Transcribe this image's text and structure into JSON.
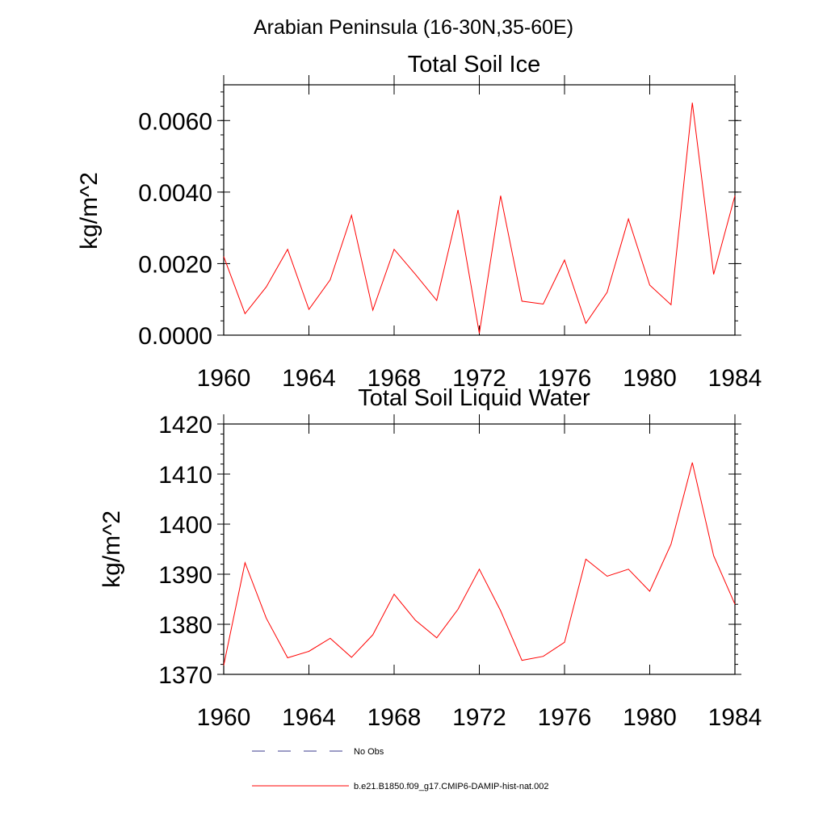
{
  "figure": {
    "title": "Arabian Peninsula (16-30N,35-60E)"
  },
  "chart_data": [
    {
      "type": "line",
      "title": "Total Soil Ice",
      "ylabel": "kg/m^2",
      "xlabel": "",
      "x": [
        1960,
        1961,
        1962,
        1963,
        1964,
        1965,
        1966,
        1967,
        1968,
        1969,
        1970,
        1971,
        1972,
        1973,
        1974,
        1975,
        1976,
        1977,
        1978,
        1979,
        1980,
        1981,
        1982,
        1983,
        1984
      ],
      "xlim": [
        1960,
        1984
      ],
      "ylim": [
        0,
        0.007
      ],
      "x_ticks": [
        1960,
        1964,
        1968,
        1972,
        1976,
        1980,
        1984
      ],
      "x_tick_labels": [
        "1960",
        "1964",
        "1968",
        "1972",
        "1976",
        "1980",
        "1984"
      ],
      "y_ticks": [
        0,
        0.002,
        0.004,
        0.006
      ],
      "y_tick_labels": [
        "0.0000",
        "0.0020",
        "0.0040",
        "0.0060"
      ],
      "series": [
        {
          "name": "b.e21.B1850.f09_g17.CMIP6-DAMIP-hist-nat.002",
          "color": "#ff0000",
          "values": [
            0.0022,
            0.0006,
            0.00135,
            0.0024,
            0.00072,
            0.00155,
            0.00335,
            0.0007,
            0.0024,
            0.0017,
            0.00097,
            0.0035,
            5e-05,
            0.0039,
            0.00095,
            0.00087,
            0.0021,
            0.00033,
            0.0012,
            0.00325,
            0.0014,
            0.00085,
            0.0065,
            0.0017,
            0.0039
          ]
        }
      ],
      "grid": false
    },
    {
      "type": "line",
      "title": "Total Soil Liquid Water",
      "ylabel": "kg/m^2",
      "xlabel": "",
      "x": [
        1960,
        1961,
        1962,
        1963,
        1964,
        1965,
        1966,
        1967,
        1968,
        1969,
        1970,
        1971,
        1972,
        1973,
        1974,
        1975,
        1976,
        1977,
        1978,
        1979,
        1980,
        1981,
        1982,
        1983,
        1984
      ],
      "xlim": [
        1960,
        1984
      ],
      "ylim": [
        1370,
        1420
      ],
      "x_ticks": [
        1960,
        1964,
        1968,
        1972,
        1976,
        1980,
        1984
      ],
      "x_tick_labels": [
        "1960",
        "1964",
        "1968",
        "1972",
        "1976",
        "1980",
        "1984"
      ],
      "y_ticks": [
        1370,
        1380,
        1390,
        1400,
        1410,
        1420
      ],
      "y_tick_labels": [
        "1370",
        "1380",
        "1390",
        "1400",
        "1410",
        "1420"
      ],
      "series": [
        {
          "name": "b.e21.B1850.f09_g17.CMIP6-DAMIP-hist-nat.002",
          "color": "#ff0000",
          "values": [
            1371.8,
            1392.3,
            1381.2,
            1373.3,
            1374.6,
            1377.2,
            1373.4,
            1377.9,
            1386.0,
            1380.8,
            1377.3,
            1383.0,
            1391.0,
            1382.7,
            1372.8,
            1373.6,
            1376.4,
            1393.0,
            1389.6,
            1391.0,
            1386.6,
            1396.0,
            1412.3,
            1393.7,
            1384.0
          ]
        }
      ],
      "grid": false
    }
  ],
  "legend": {
    "placement": "bottom",
    "entries": [
      {
        "label": "No Obs",
        "style": "dashed",
        "color": "#3a3a8c"
      },
      {
        "label": "b.e21.B1850.f09_g17.CMIP6-DAMIP-hist-nat.002",
        "style": "solid",
        "color": "#ff0000"
      }
    ]
  }
}
